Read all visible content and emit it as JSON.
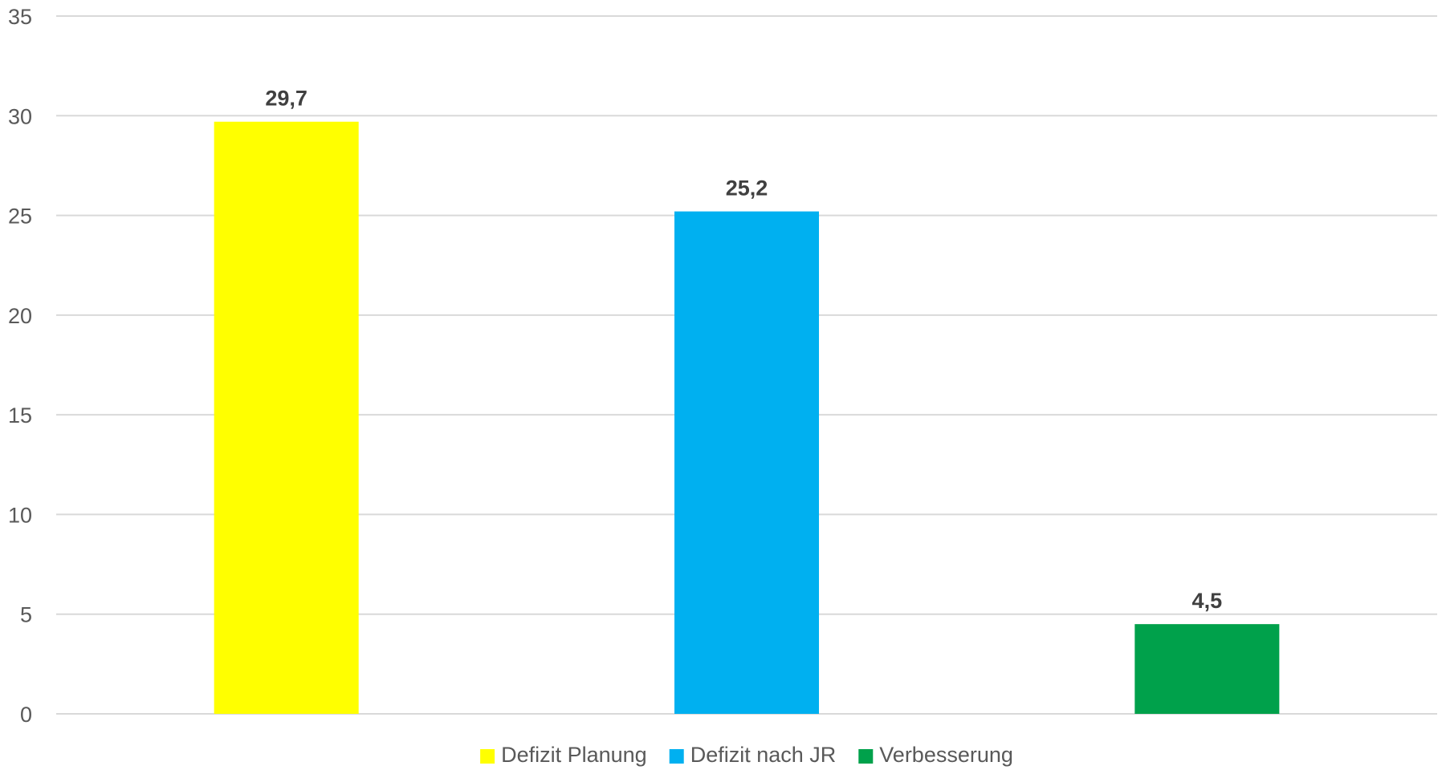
{
  "chart_data": {
    "type": "bar",
    "categories": [
      "Defizit Planung",
      "Defizit nach JR",
      "Verbesserung"
    ],
    "values": [
      29.7,
      25.2,
      4.5
    ],
    "value_labels": [
      "29,7",
      "25,2",
      "4,5"
    ],
    "colors": [
      "#FFFF00",
      "#00B0F0",
      "#00A14B"
    ],
    "ylim": [
      0,
      35
    ],
    "yticks": [
      0,
      5,
      10,
      15,
      20,
      25,
      30,
      35
    ],
    "ytick_labels": [
      "0",
      "5",
      "10",
      "15",
      "20",
      "25",
      "30",
      "35"
    ],
    "grid": true,
    "legend": {
      "placement": "bottom",
      "entries": [
        "Defizit Planung",
        "Defizit nach JR",
        "Verbesserung"
      ]
    }
  }
}
